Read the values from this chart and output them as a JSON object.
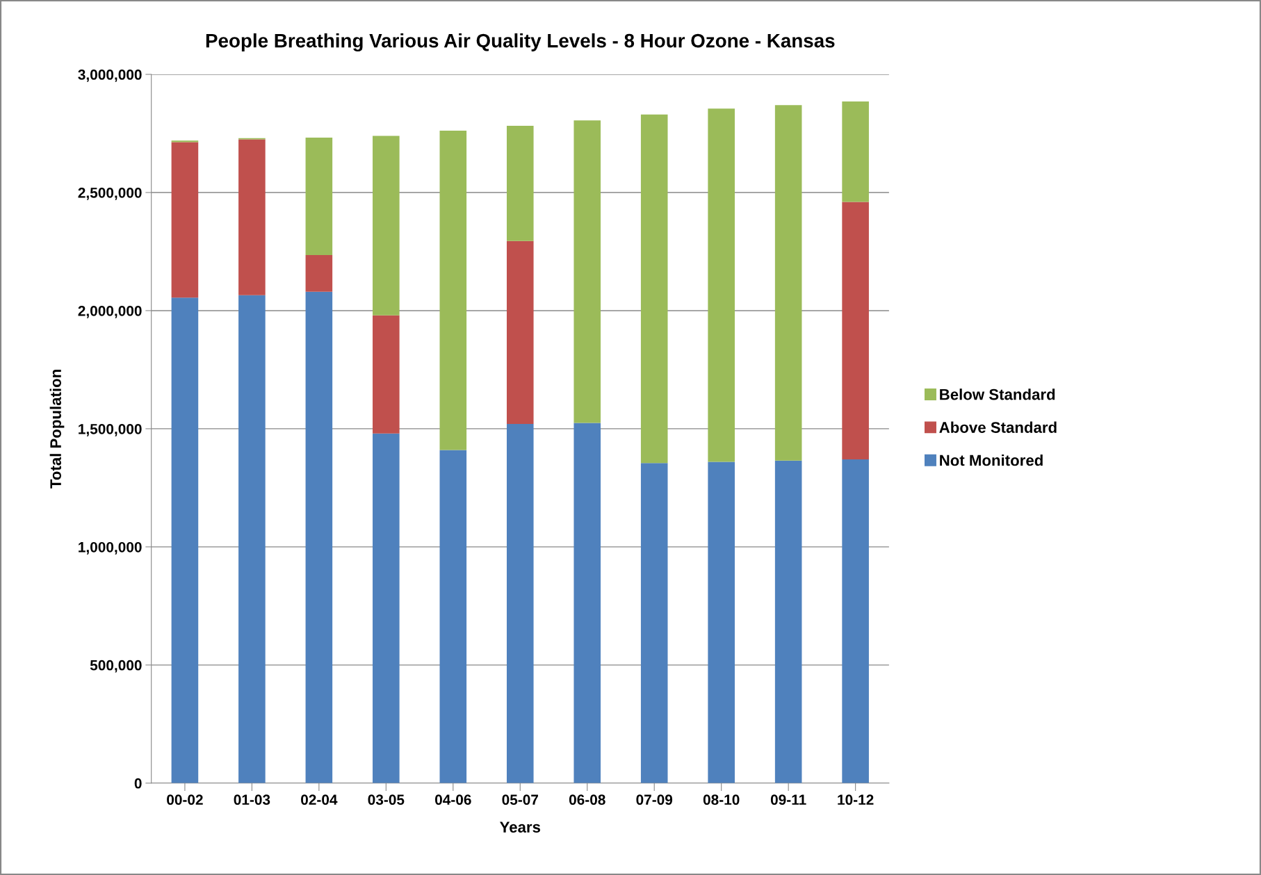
{
  "chart_data": {
    "type": "bar",
    "title": "People Breathing Various Air Quality Levels - 8 Hour Ozone - Kansas",
    "xlabel": "Years",
    "ylabel": "Total Population",
    "categories": [
      "00-02",
      "01-03",
      "02-04",
      "03-05",
      "04-06",
      "05-07",
      "06-08",
      "07-09",
      "08-10",
      "09-11",
      "10-12"
    ],
    "stacked": true,
    "series": [
      {
        "name": "Not Monitored",
        "color": "#4f81bd",
        "values": [
          2055000,
          2065000,
          2080000,
          1480000,
          1410000,
          1520000,
          1525000,
          1355000,
          1360000,
          1365000,
          1370000
        ]
      },
      {
        "name": "Above Standard",
        "color": "#c0504d",
        "values": [
          658000,
          660000,
          155000,
          500000,
          0,
          775000,
          0,
          0,
          0,
          0,
          1090000
        ]
      },
      {
        "name": "Below Standard",
        "color": "#9bbb59",
        "values": [
          7000,
          5000,
          497000,
          760000,
          1352000,
          487000,
          1280000,
          1475000,
          1495000,
          1505000,
          425000
        ]
      }
    ],
    "ylim": [
      0,
      3000000
    ],
    "yticks": [
      0,
      {
        "value": 500000,
        "label": "500,000"
      },
      {
        "value": 1000000,
        "label": "1,000,000"
      },
      {
        "value": 1500000,
        "label": "1,500,000"
      },
      {
        "value": 2000000,
        "label": "2,000,000"
      },
      {
        "value": 2500000,
        "label": "2,500,000"
      },
      {
        "value": 3000000,
        "label": "3,000,000"
      }
    ],
    "grid": "y",
    "legend": "right"
  }
}
